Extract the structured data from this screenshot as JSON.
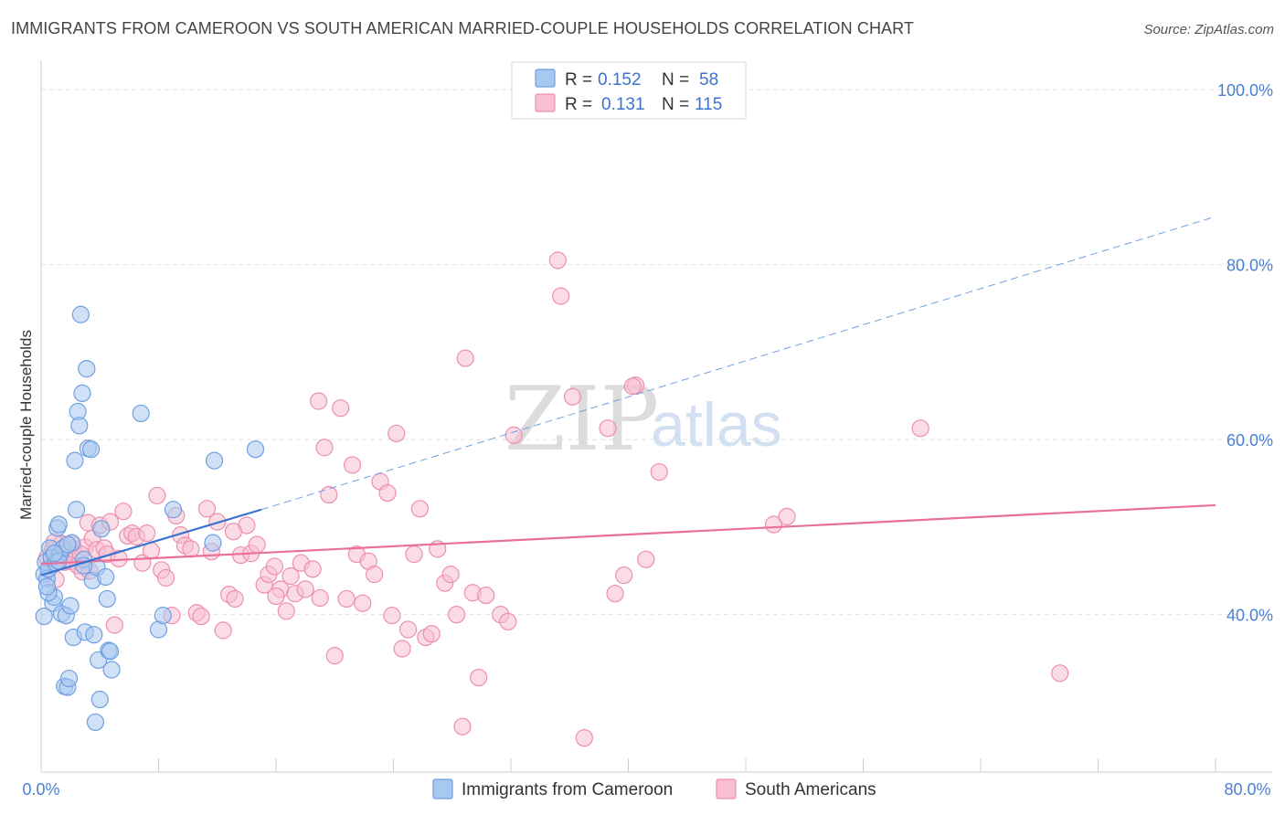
{
  "header": {
    "title": "IMMIGRANTS FROM CAMEROON VS SOUTH AMERICAN MARRIED-COUPLE HOUSEHOLDS CORRELATION CHART",
    "source": "Source: ZipAtlas.com"
  },
  "watermark": {
    "zip": "ZIP",
    "atlas": "atlas"
  },
  "legend_box": {
    "rows": [
      {
        "r_label": "R =",
        "r_value": "0.152",
        "n_label": "N =",
        "n_value": "58",
        "color": "#8fb6ec"
      },
      {
        "r_label": "R =",
        "r_value": "0.131",
        "n_label": "N =",
        "n_value": "115",
        "color": "#f3a8c0"
      }
    ]
  },
  "colors": {
    "blue_fill": "#a9c8f0",
    "blue_stroke": "#6f9fe0",
    "blue_line": "#3873d0",
    "pink_fill": "#f7bfd0",
    "pink_stroke": "#ec8fae",
    "pink_line": "#e8709a",
    "grid": "#e2e2e2",
    "tick_text": "#4a7fd4"
  },
  "chart_data": {
    "type": "scatter",
    "title": "IMMIGRANTS FROM CAMEROON VS SOUTH AMERICAN MARRIED-COUPLE HOUSEHOLDS CORRELATION CHART",
    "xlabel": "",
    "ylabel": "Married-couple Households",
    "xlim": [
      0,
      80
    ],
    "ylim": [
      22,
      102
    ],
    "x_tick_labels": [
      "0.0%",
      "80.0%"
    ],
    "y_ticks": [
      40,
      60,
      80,
      100
    ],
    "y_tick_labels": [
      "40.0%",
      "60.0%",
      "80.0%",
      "100.0%"
    ],
    "grid": true,
    "legend_position": "bottom",
    "series": [
      {
        "name": "Immigrants from Cameroon",
        "color": "#a9c8f0",
        "points": [
          [
            0.2,
            44.6
          ],
          [
            0.3,
            46.0
          ],
          [
            0.4,
            44.1
          ],
          [
            0.5,
            45.2
          ],
          [
            0.6,
            47.6
          ],
          [
            0.7,
            46.5
          ],
          [
            0.8,
            41.3
          ],
          [
            0.9,
            42.0
          ],
          [
            1.0,
            45.9
          ],
          [
            1.1,
            49.9
          ],
          [
            1.2,
            50.3
          ],
          [
            1.3,
            46.9
          ],
          [
            1.4,
            40.1
          ],
          [
            1.5,
            47.6
          ],
          [
            1.6,
            31.8
          ],
          [
            1.7,
            39.9
          ],
          [
            1.8,
            31.7
          ],
          [
            1.9,
            32.7
          ],
          [
            2.0,
            41.0
          ],
          [
            2.1,
            48.2
          ],
          [
            2.2,
            37.4
          ],
          [
            2.3,
            57.6
          ],
          [
            2.4,
            52.0
          ],
          [
            2.5,
            63.2
          ],
          [
            2.6,
            61.6
          ],
          [
            2.7,
            74.3
          ],
          [
            2.8,
            65.3
          ],
          [
            2.9,
            46.3
          ],
          [
            3.0,
            38.0
          ],
          [
            3.1,
            68.1
          ],
          [
            3.2,
            59.0
          ],
          [
            3.4,
            58.9
          ],
          [
            3.5,
            43.9
          ],
          [
            3.6,
            37.7
          ],
          [
            3.7,
            27.7
          ],
          [
            3.8,
            45.4
          ],
          [
            3.9,
            34.8
          ],
          [
            4.0,
            30.3
          ],
          [
            4.1,
            49.8
          ],
          [
            4.4,
            44.3
          ],
          [
            4.5,
            41.8
          ],
          [
            4.6,
            35.9
          ],
          [
            4.7,
            35.8
          ],
          [
            4.8,
            33.7
          ],
          [
            6.8,
            63.0
          ],
          [
            8.0,
            38.3
          ],
          [
            8.3,
            39.9
          ],
          [
            9.0,
            52.0
          ],
          [
            11.7,
            48.2
          ],
          [
            11.8,
            57.6
          ],
          [
            14.6,
            58.9
          ],
          [
            0.2,
            39.8
          ],
          [
            0.5,
            42.5
          ],
          [
            1.2,
            46.1
          ],
          [
            0.9,
            47.0
          ],
          [
            1.8,
            48.0
          ],
          [
            2.9,
            45.6
          ],
          [
            0.4,
            43.2
          ]
        ]
      },
      {
        "name": "South Americans",
        "color": "#f7bfd0",
        "points": [
          [
            0.4,
            46.5
          ],
          [
            0.6,
            45.5
          ],
          [
            0.8,
            47.5
          ],
          [
            1.0,
            44.0
          ],
          [
            1.2,
            46.9
          ],
          [
            1.4,
            48.1
          ],
          [
            1.6,
            46.0
          ],
          [
            1.8,
            47.2
          ],
          [
            2.0,
            46.1
          ],
          [
            2.2,
            47.5
          ],
          [
            2.5,
            45.6
          ],
          [
            2.8,
            44.9
          ],
          [
            3.0,
            47.7
          ],
          [
            3.2,
            50.5
          ],
          [
            3.5,
            48.7
          ],
          [
            3.8,
            47.4
          ],
          [
            4.0,
            50.2
          ],
          [
            4.3,
            47.6
          ],
          [
            4.5,
            46.9
          ],
          [
            4.7,
            50.6
          ],
          [
            5.0,
            38.8
          ],
          [
            5.3,
            46.4
          ],
          [
            5.6,
            51.8
          ],
          [
            5.9,
            49.0
          ],
          [
            6.2,
            49.3
          ],
          [
            6.5,
            48.9
          ],
          [
            6.9,
            45.9
          ],
          [
            7.2,
            49.3
          ],
          [
            7.5,
            47.3
          ],
          [
            7.9,
            53.6
          ],
          [
            8.2,
            45.1
          ],
          [
            8.5,
            44.2
          ],
          [
            8.9,
            39.9
          ],
          [
            9.2,
            51.3
          ],
          [
            9.5,
            49.1
          ],
          [
            9.8,
            47.9
          ],
          [
            10.2,
            47.5
          ],
          [
            10.6,
            40.2
          ],
          [
            10.9,
            39.8
          ],
          [
            11.3,
            52.1
          ],
          [
            11.6,
            47.2
          ],
          [
            12.0,
            50.6
          ],
          [
            12.4,
            38.2
          ],
          [
            12.8,
            42.3
          ],
          [
            13.2,
            41.8
          ],
          [
            13.6,
            46.8
          ],
          [
            14.0,
            50.2
          ],
          [
            14.3,
            47.0
          ],
          [
            14.7,
            48.0
          ],
          [
            15.2,
            43.4
          ],
          [
            15.5,
            44.6
          ],
          [
            15.9,
            45.5
          ],
          [
            16.3,
            42.9
          ],
          [
            16.7,
            40.4
          ],
          [
            17.0,
            44.4
          ],
          [
            17.3,
            42.4
          ],
          [
            17.7,
            45.9
          ],
          [
            18.0,
            42.9
          ],
          [
            18.5,
            45.2
          ],
          [
            18.9,
            64.4
          ],
          [
            19.3,
            59.1
          ],
          [
            19.6,
            53.7
          ],
          [
            20.0,
            35.3
          ],
          [
            20.4,
            63.6
          ],
          [
            20.8,
            41.8
          ],
          [
            21.2,
            57.1
          ],
          [
            21.5,
            46.9
          ],
          [
            21.9,
            41.3
          ],
          [
            22.3,
            46.1
          ],
          [
            22.7,
            44.6
          ],
          [
            23.1,
            55.2
          ],
          [
            23.6,
            53.9
          ],
          [
            23.9,
            39.9
          ],
          [
            24.2,
            60.7
          ],
          [
            24.6,
            36.1
          ],
          [
            25.0,
            38.3
          ],
          [
            25.4,
            46.9
          ],
          [
            25.8,
            52.1
          ],
          [
            26.2,
            37.4
          ],
          [
            26.6,
            37.8
          ],
          [
            27.0,
            47.5
          ],
          [
            27.5,
            43.6
          ],
          [
            27.9,
            44.6
          ],
          [
            28.3,
            40.0
          ],
          [
            28.7,
            27.2
          ],
          [
            28.9,
            69.3
          ],
          [
            29.4,
            42.5
          ],
          [
            29.8,
            32.8
          ],
          [
            30.3,
            42.2
          ],
          [
            31.3,
            40.0
          ],
          [
            31.8,
            39.2
          ],
          [
            32.2,
            60.5
          ],
          [
            35.2,
            80.5
          ],
          [
            35.4,
            76.4
          ],
          [
            36.2,
            64.9
          ],
          [
            37.0,
            25.9
          ],
          [
            38.6,
            61.3
          ],
          [
            39.1,
            42.4
          ],
          [
            39.7,
            44.5
          ],
          [
            40.5,
            66.2
          ],
          [
            40.3,
            66.1
          ],
          [
            41.2,
            46.3
          ],
          [
            42.1,
            56.3
          ],
          [
            49.9,
            50.3
          ],
          [
            50.8,
            51.2
          ],
          [
            59.9,
            61.3
          ],
          [
            69.4,
            33.3
          ],
          [
            1.1,
            46.2
          ],
          [
            0.9,
            48.3
          ],
          [
            2.1,
            48.0
          ],
          [
            2.7,
            46.9
          ],
          [
            3.3,
            45.0
          ],
          [
            16.0,
            42.1
          ],
          [
            19.0,
            41.9
          ],
          [
            13.1,
            49.5
          ]
        ]
      }
    ],
    "trend_lines": [
      {
        "series": "Immigrants from Cameroon",
        "solid_from": [
          0,
          44.5
        ],
        "solid_to": [
          15.0,
          52.0
        ],
        "dashed_to": [
          80,
          85.5
        ]
      },
      {
        "series": "South Americans",
        "from": [
          0,
          45.8
        ],
        "to": [
          80,
          52.5
        ]
      }
    ]
  }
}
